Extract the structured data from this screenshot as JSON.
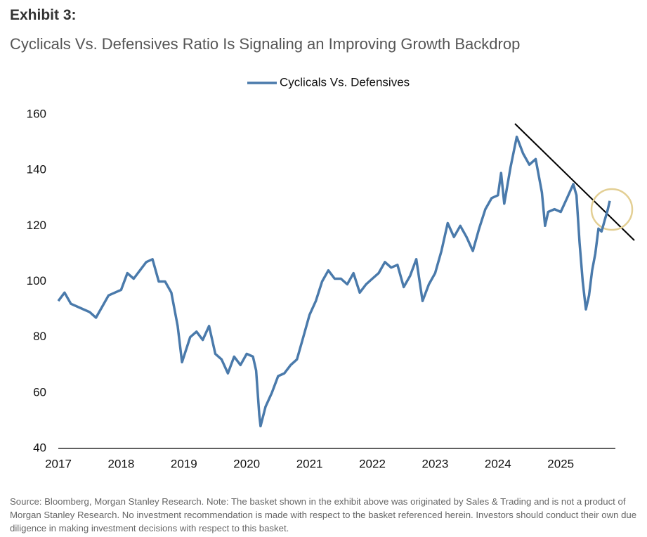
{
  "chart_data": {
    "type": "line",
    "title": "Exhibit 3:",
    "subtitle": "Cyclicals Vs. Defensives Ratio Is Signaling an Improving Growth Backdrop",
    "note": "Source: Bloomberg, Morgan Stanley Research. Note: The basket shown in the exhibit above was originated by Sales & Trading and is not a product of Morgan Stanley Research. No investment recommendation is made with respect to the basket referenced herein. Investors should conduct their own due diligence in making investment decisions with respect to this basket.",
    "x": [
      2017.0,
      2017.1,
      2017.2,
      2017.3,
      2017.4,
      2017.5,
      2017.6,
      2017.7,
      2017.8,
      2017.9,
      2018.0,
      2018.1,
      2018.2,
      2018.3,
      2018.4,
      2018.5,
      2018.6,
      2018.7,
      2018.8,
      2018.9,
      2018.97,
      2019.1,
      2019.2,
      2019.3,
      2019.4,
      2019.5,
      2019.6,
      2019.7,
      2019.8,
      2019.9,
      2020.0,
      2020.1,
      2020.15,
      2020.2,
      2020.22,
      2020.3,
      2020.4,
      2020.5,
      2020.6,
      2020.7,
      2020.8,
      2020.9,
      2021.0,
      2021.1,
      2021.2,
      2021.3,
      2021.4,
      2021.5,
      2021.6,
      2021.7,
      2021.8,
      2021.9,
      2022.0,
      2022.1,
      2022.2,
      2022.3,
      2022.4,
      2022.5,
      2022.6,
      2022.7,
      2022.8,
      2022.9,
      2023.0,
      2023.1,
      2023.2,
      2023.3,
      2023.4,
      2023.5,
      2023.6,
      2023.7,
      2023.8,
      2023.9,
      2024.0,
      2024.05,
      2024.1,
      2024.2,
      2024.3,
      2024.4,
      2024.5,
      2024.6,
      2024.7,
      2024.75,
      2024.8,
      2024.9,
      2025.0,
      2025.1,
      2025.2,
      2025.25,
      2025.3,
      2025.35,
      2025.4,
      2025.45,
      2025.5,
      2025.55,
      2025.6,
      2025.65,
      2025.7,
      2025.75,
      2025.78
    ],
    "series": [
      {
        "name": "Cyclicals Vs. Defensives",
        "color": "#4a7aab",
        "values": [
          93,
          96,
          92,
          91,
          90,
          89,
          87,
          91,
          95,
          96,
          97,
          103,
          101,
          104,
          107,
          108,
          100,
          100,
          96,
          84,
          71,
          80,
          82,
          79,
          84,
          74,
          72,
          67,
          73,
          70,
          74,
          73,
          68,
          52,
          48,
          55,
          60,
          66,
          67,
          70,
          72,
          80,
          88,
          93,
          100,
          104,
          101,
          101,
          99,
          103,
          96,
          99,
          101,
          103,
          107,
          105,
          106,
          98,
          102,
          108,
          93,
          99,
          103,
          111,
          121,
          116,
          120,
          116,
          111,
          119,
          126,
          130,
          131,
          139,
          128,
          141,
          152,
          146,
          142,
          144,
          132,
          120,
          125,
          126,
          125,
          130,
          135,
          131,
          114,
          100,
          90,
          95,
          104,
          110,
          119,
          118,
          122,
          126,
          129
        ]
      }
    ],
    "xlim": [
      2017,
      2025.87
    ],
    "xticks": [
      2017,
      2018,
      2019,
      2020,
      2021,
      2022,
      2023,
      2024,
      2025
    ],
    "ylim": [
      40,
      160
    ],
    "yticks": [
      40,
      60,
      80,
      100,
      120,
      140,
      160
    ],
    "grid": false,
    "legend": "top"
  }
}
